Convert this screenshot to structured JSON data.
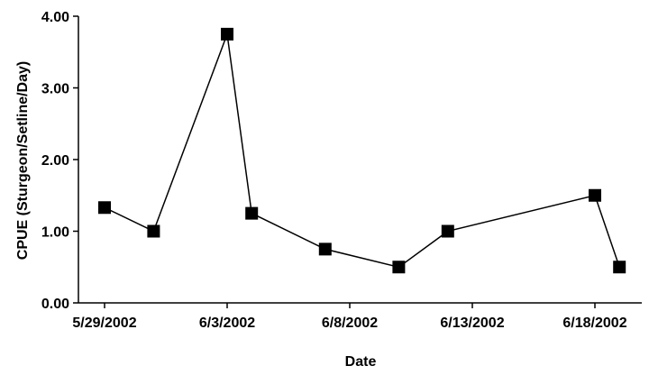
{
  "chart_data": {
    "type": "line",
    "title": "",
    "xlabel": "Date",
    "ylabel": "CPUE (Sturgeon/Setline/Day)",
    "x_ticks": [
      "5/29/2002",
      "6/3/2002",
      "6/8/2002",
      "6/13/2002",
      "6/18/2002"
    ],
    "y_ticks": [
      "0.00",
      "1.00",
      "2.00",
      "3.00",
      "4.00"
    ],
    "xlim": [
      "5/29/2002",
      "6/20/2002"
    ],
    "ylim": [
      0,
      4
    ],
    "grid": false,
    "legend": "none",
    "series": [
      {
        "color": "#000000",
        "marker": "square",
        "points": [
          {
            "x": "5/29/2002",
            "y": 1.33
          },
          {
            "x": "5/31/2002",
            "y": 1.0
          },
          {
            "x": "6/3/2002",
            "y": 3.75
          },
          {
            "x": "6/4/2002",
            "y": 1.25
          },
          {
            "x": "6/7/2002",
            "y": 0.75
          },
          {
            "x": "6/10/2002",
            "y": 0.5
          },
          {
            "x": "6/12/2002",
            "y": 1.0
          },
          {
            "x": "6/18/2002",
            "y": 1.5
          },
          {
            "x": "6/19/2002",
            "y": 0.5
          }
        ]
      }
    ]
  }
}
